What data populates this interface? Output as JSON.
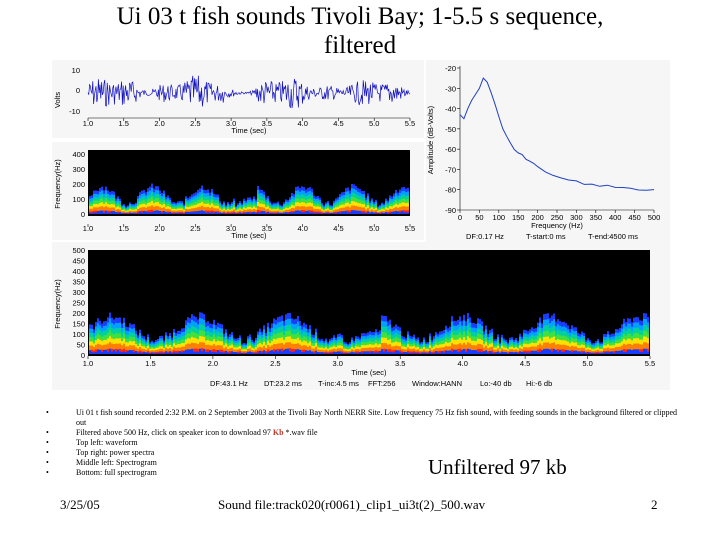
{
  "title_line1": "Ui 03 t fish sounds Tivoli Bay; 1-5.5 s sequence,",
  "title_line2": "filtered",
  "waveform": {
    "ylabel": "Volts",
    "xlabel": "Time (sec)",
    "yticks": [
      "10",
      "0",
      "-10"
    ],
    "xticks": [
      "1.0",
      "1.5",
      "2.0",
      "2.5",
      "3.0",
      "3.5",
      "4.0",
      "4.5",
      "5.0",
      "5.5"
    ]
  },
  "spectrogram_mid": {
    "ylabel": "Frequency(Hz)",
    "xlabel": "Time (sec)",
    "yticks": [
      "400",
      "300",
      "200",
      "100",
      "0"
    ],
    "xticks": [
      "1.0",
      "1.5",
      "2.0",
      "2.5",
      "3.0",
      "3.5",
      "4.0",
      "4.5",
      "5.0",
      "5.5"
    ]
  },
  "spectrogram_full": {
    "ylabel": "Frequency(Hz)",
    "xlabel": "Time (sec)",
    "yticks": [
      "500",
      "450",
      "400",
      "350",
      "300",
      "250",
      "200",
      "150",
      "100",
      "50",
      "0"
    ],
    "xticks": [
      "1.0",
      "1.5",
      "2.0",
      "2.5",
      "3.0",
      "3.5",
      "4.0",
      "4.5",
      "5.0",
      "5.5"
    ],
    "params": {
      "df": "DF:43.1 Hz",
      "dt": "DT:23.2 ms",
      "tinc": "T-inc:4.5 ms",
      "fft": "FFT:256",
      "window": "Window:HANN",
      "lo": "Lo:-40 db",
      "hi": "Hi:-6 db"
    }
  },
  "chart_data": {
    "type": "line",
    "xlabel": "Frequency (Hz)",
    "ylabel": "Amplitude (dB-Volts)",
    "xlim": [
      0,
      500
    ],
    "ylim": [
      -90,
      -20
    ],
    "xticks": [
      0,
      50,
      100,
      150,
      200,
      250,
      300,
      350,
      400,
      450,
      500
    ],
    "yticks": [
      -20,
      -30,
      -40,
      -50,
      -60,
      -70,
      -80,
      -90
    ],
    "x": [
      0,
      10,
      20,
      30,
      40,
      50,
      60,
      70,
      80,
      90,
      100,
      110,
      120,
      130,
      140,
      150,
      160,
      170,
      180,
      190,
      200,
      220,
      240,
      260,
      280,
      300,
      320,
      340,
      360,
      380,
      400,
      420,
      440,
      460,
      480,
      500
    ],
    "y": [
      -43,
      -45,
      -40,
      -36,
      -33,
      -30,
      -25,
      -27,
      -32,
      -38,
      -44,
      -50,
      -54,
      -57,
      -60,
      -62,
      -63,
      -65,
      -66,
      -67,
      -69,
      -71,
      -73,
      -74,
      -75,
      -76,
      -77,
      -77,
      -78,
      -78,
      -79,
      -79,
      -79,
      -80,
      -80,
      -80
    ],
    "params": {
      "df": "DF:0.17 Hz",
      "tstart": "T-start:0 ms",
      "tend": "T-end:4500 ms"
    }
  },
  "bullets": [
    "Ui 01 t fish sound recorded 2:32 P.M. on 2 September 2003 at the Tivoli Bay North NERR Site. Low frequency 75 Hz fish sound, with feeding sounds in the background filtered or clipped out",
    "Filtered above 500 Hz, click on speaker icon to download 97",
    "Top left: waveform",
    "Top right: power spectra",
    "Middle left: Spectrogram",
    "Bottom: full spectrogram"
  ],
  "bullet2_kb": "Kb",
  "bullet2_suffix": " *.wav file",
  "unfiltered_label": "Unfiltered 97 kb",
  "footer": {
    "date": "3/25/05",
    "sound_file": "Sound file:track020(r0061)_clip1_ui3t(2)_500.wav",
    "page": "2"
  },
  "colors": {
    "spectrum_line": "#2040c0",
    "waveform": "#1010c0",
    "spectrogram_bg": "#000000"
  }
}
